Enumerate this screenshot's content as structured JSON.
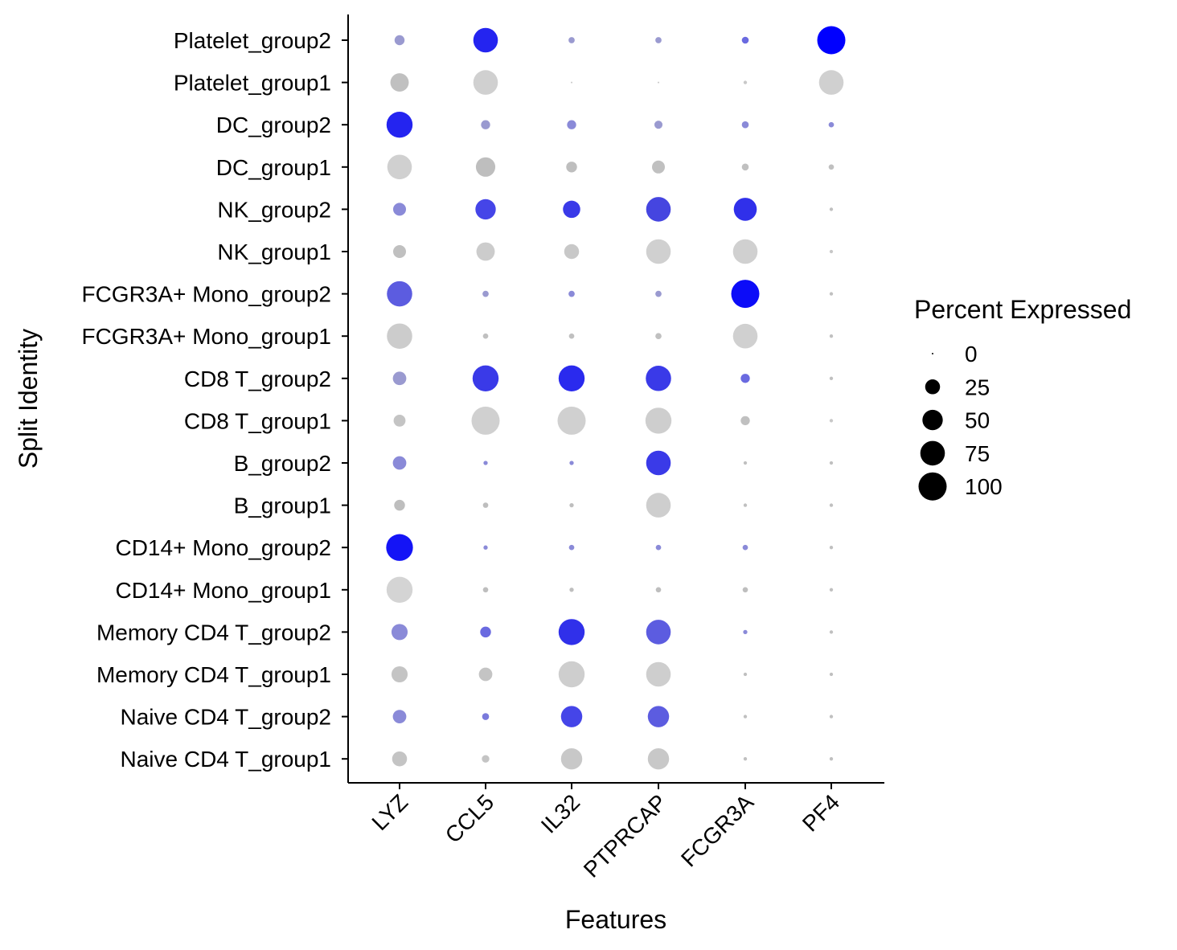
{
  "chart_data": {
    "type": "dotplot",
    "xlabel": "Features",
    "ylabel": "Split Identity",
    "features": [
      "LYZ",
      "CCL5",
      "IL32",
      "PTPRCAP",
      "FCGR3A",
      "PF4"
    ],
    "identities": [
      "Platelet_group2",
      "Platelet_group1",
      "DC_group2",
      "DC_group1",
      "NK_group2",
      "NK_group1",
      "FCGR3A+ Mono_group2",
      "FCGR3A+ Mono_group1",
      "CD8 T_group2",
      "CD8 T_group1",
      "B_group2",
      "B_group1",
      "CD14+ Mono_group2",
      "CD14+ Mono_group1",
      "Memory CD4 T_group2",
      "Memory CD4 T_group1",
      "Naive CD4 T_group2",
      "Naive CD4 T_group1"
    ],
    "percent_expressed": [
      [
        10,
        75,
        3,
        3,
        4,
        100
      ],
      [
        40,
        75,
        0,
        0,
        0.5,
        75
      ],
      [
        85,
        8,
        8,
        6,
        4,
        2
      ],
      [
        75,
        45,
        12,
        18,
        4,
        2
      ],
      [
        18,
        50,
        35,
        75,
        65,
        0.5
      ],
      [
        18,
        40,
        25,
        75,
        75,
        0.5
      ],
      [
        80,
        3,
        3,
        3,
        100,
        0.5
      ],
      [
        80,
        2,
        2,
        3,
        75,
        0.5
      ],
      [
        20,
        85,
        85,
        80,
        8,
        0.5
      ],
      [
        15,
        100,
        100,
        85,
        8,
        0.5
      ],
      [
        20,
        1,
        1,
        75,
        0.5,
        0.5
      ],
      [
        12,
        2,
        1,
        75,
        0.5,
        0.5
      ],
      [
        90,
        1,
        2,
        2,
        2,
        0.5
      ],
      [
        85,
        2,
        1,
        2,
        2,
        0.5
      ],
      [
        30,
        12,
        85,
        75,
        1,
        0.5
      ],
      [
        30,
        20,
        85,
        75,
        0.5,
        0.5
      ],
      [
        20,
        4,
        55,
        55,
        0.5,
        0.5
      ],
      [
        25,
        5,
        55,
        55,
        0.5,
        0.5
      ]
    ],
    "colors": [
      [
        "#9a9ad0",
        "#2424f0",
        "#9a9ad0",
        "#9a9ad0",
        "#6a6ae0",
        "#0000ff"
      ],
      [
        "#c0c0c0",
        "#d0d0d0",
        "#c8c8c8",
        "#c8c8c8",
        "#c8c8c8",
        "#d0d0d0"
      ],
      [
        "#2424f0",
        "#9a9ad0",
        "#8a8ad8",
        "#9a9ad0",
        "#8a8ad8",
        "#8a8ad8"
      ],
      [
        "#d0d0d0",
        "#bebebe",
        "#bebebe",
        "#c0c0c0",
        "#c0c0c0",
        "#c0c0c0"
      ],
      [
        "#8a8ad8",
        "#4545e8",
        "#3a3ae8",
        "#4545e0",
        "#3030ea",
        "#c0c0c0"
      ],
      [
        "#c0c0c0",
        "#cccccc",
        "#c8c8c8",
        "#d0d0d0",
        "#d0d0d0",
        "#c8c8c8"
      ],
      [
        "#5c5ce0",
        "#9a9ad0",
        "#8a8ad8",
        "#9a9ad0",
        "#0c0cf8",
        "#c0c0c0"
      ],
      [
        "#cccccc",
        "#c0c0c0",
        "#c0c0c0",
        "#c0c0c0",
        "#d0d0d0",
        "#c0c0c0"
      ],
      [
        "#9a9ad0",
        "#3a3ae8",
        "#2a2aee",
        "#3a3ae8",
        "#6a6ae0",
        "#c0c0c0"
      ],
      [
        "#c4c4c4",
        "#d0d0d0",
        "#d0d0d0",
        "#cecece",
        "#c0c0c0",
        "#c8c8c8"
      ],
      [
        "#8a8ad8",
        "#8a8ad8",
        "#8a8ad8",
        "#3a3ae8",
        "#c0c0c0",
        "#c0c0c0"
      ],
      [
        "#bebebe",
        "#bebebe",
        "#bebebe",
        "#cecece",
        "#c0c0c0",
        "#c0c0c0"
      ],
      [
        "#1414f6",
        "#8a8ad8",
        "#8a8ad8",
        "#8a8ad8",
        "#8a8ad8",
        "#c0c0c0"
      ],
      [
        "#d4d4d4",
        "#bebebe",
        "#bebebe",
        "#bebebe",
        "#bebebe",
        "#c0c0c0"
      ],
      [
        "#8a8ad8",
        "#6a6ae0",
        "#3030ea",
        "#5c5ce0",
        "#8a8ad8",
        "#c0c0c0"
      ],
      [
        "#c4c4c4",
        "#c4c4c4",
        "#cecece",
        "#cecece",
        "#c0c0c0",
        "#c0c0c0"
      ],
      [
        "#8a8ad8",
        "#7a7adc",
        "#4545e8",
        "#5c5ce0",
        "#c0c0c0",
        "#c0c0c0"
      ],
      [
        "#c4c4c4",
        "#c4c4c4",
        "#c8c8c8",
        "#c8c8c8",
        "#c0c0c0",
        "#c0c0c0"
      ]
    ],
    "legend": {
      "title": "Percent Expressed",
      "values": [
        0,
        25,
        50,
        75,
        100
      ],
      "labels": [
        "0",
        "25",
        "50",
        "75",
        "100"
      ],
      "position": "right"
    },
    "grid": false
  }
}
